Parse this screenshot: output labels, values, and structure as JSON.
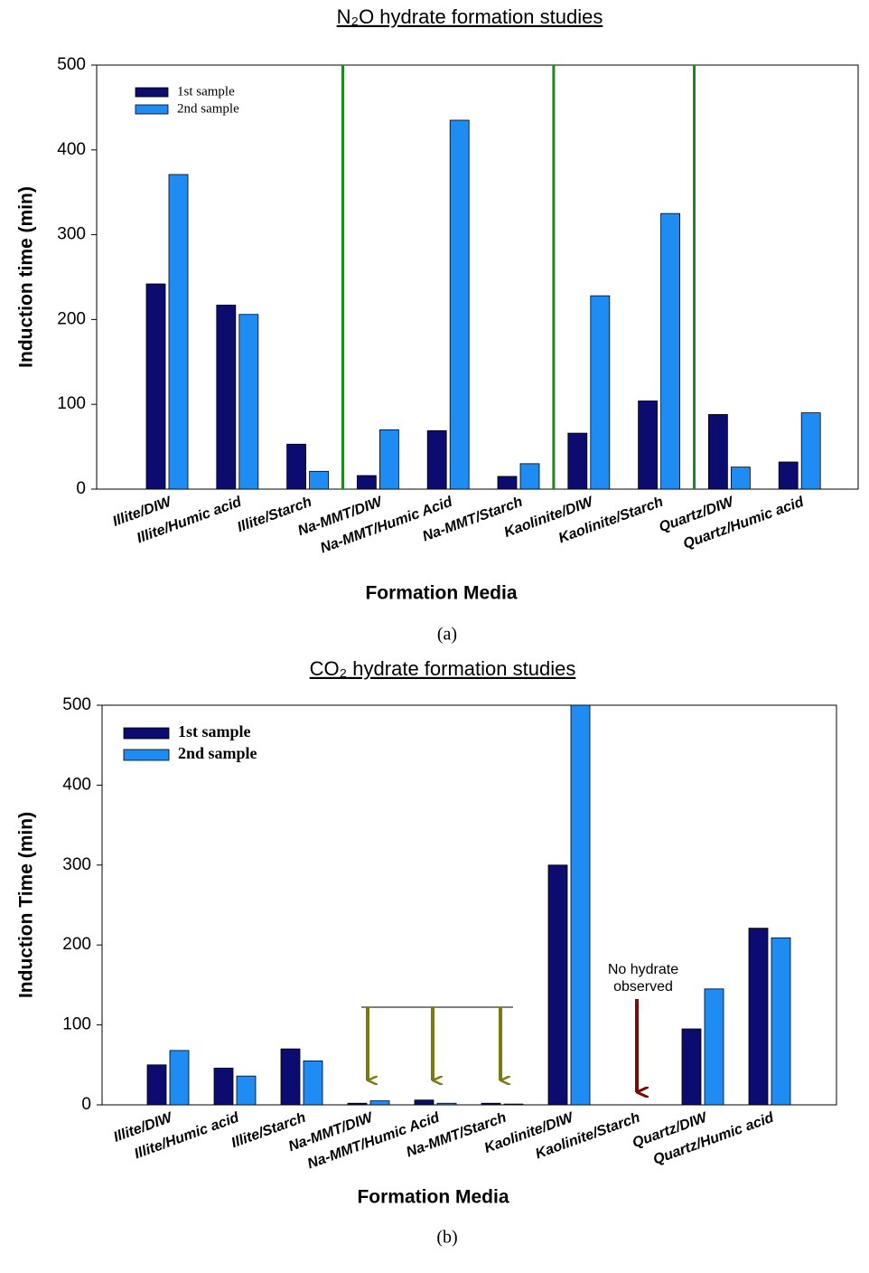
{
  "chart_data": [
    {
      "type": "bar",
      "title": "N₂O hydrate formation studies",
      "ylabel": "Induction time (min)",
      "xlabel": "Formation Media",
      "caption": "(a)",
      "categories": [
        "Illite/DIW",
        "Illite/Humic acid",
        "Illite/Starch",
        "Na-MMT/DIW",
        "Na-MMT/Humic Acid",
        "Na-MMT/Starch",
        "Kaolinite/DIW",
        "Kaolinite/Starch",
        "Quartz/DIW",
        "Quartz/Humic acid"
      ],
      "series": [
        {
          "name": "1st sample",
          "color": "#0b0b70",
          "values": [
            242,
            217,
            53,
            16,
            69,
            15,
            66,
            104,
            88,
            32
          ]
        },
        {
          "name": "2nd sample",
          "color": "#1e8cf2",
          "values": [
            371,
            206,
            21,
            70,
            435,
            30,
            228,
            325,
            26,
            90
          ]
        }
      ],
      "ylim": [
        0,
        500
      ],
      "yticks": [
        0,
        100,
        200,
        300,
        400,
        500
      ]
    },
    {
      "type": "bar",
      "title": "CO₂ hydrate formation studies",
      "ylabel": "Induction Time (min)",
      "xlabel": "Formation Media",
      "caption": "(b)",
      "annotation": [
        "No hydrate",
        "observed"
      ],
      "categories": [
        "Illite/DIW",
        "Illite/Humic acid",
        "Illite/Starch",
        "Na-MMT/DIW",
        "Na-MMT/Humic Acid",
        "Na-MMT/Starch",
        "Kaolinite/DIW",
        "Kaolinite/Starch",
        "Quartz/DIW",
        "Quartz/Humic acid"
      ],
      "series": [
        {
          "name": "1st sample",
          "color": "#0b0b70",
          "values": [
            50,
            46,
            70,
            2,
            6,
            2,
            300,
            null,
            95,
            221
          ]
        },
        {
          "name": "2nd sample",
          "color": "#1e8cf2",
          "values": [
            68,
            36,
            55,
            5,
            2,
            1,
            500,
            null,
            145,
            209
          ]
        }
      ],
      "ylim": [
        0,
        500
      ],
      "yticks": [
        0,
        100,
        200,
        300,
        400,
        500
      ]
    }
  ]
}
